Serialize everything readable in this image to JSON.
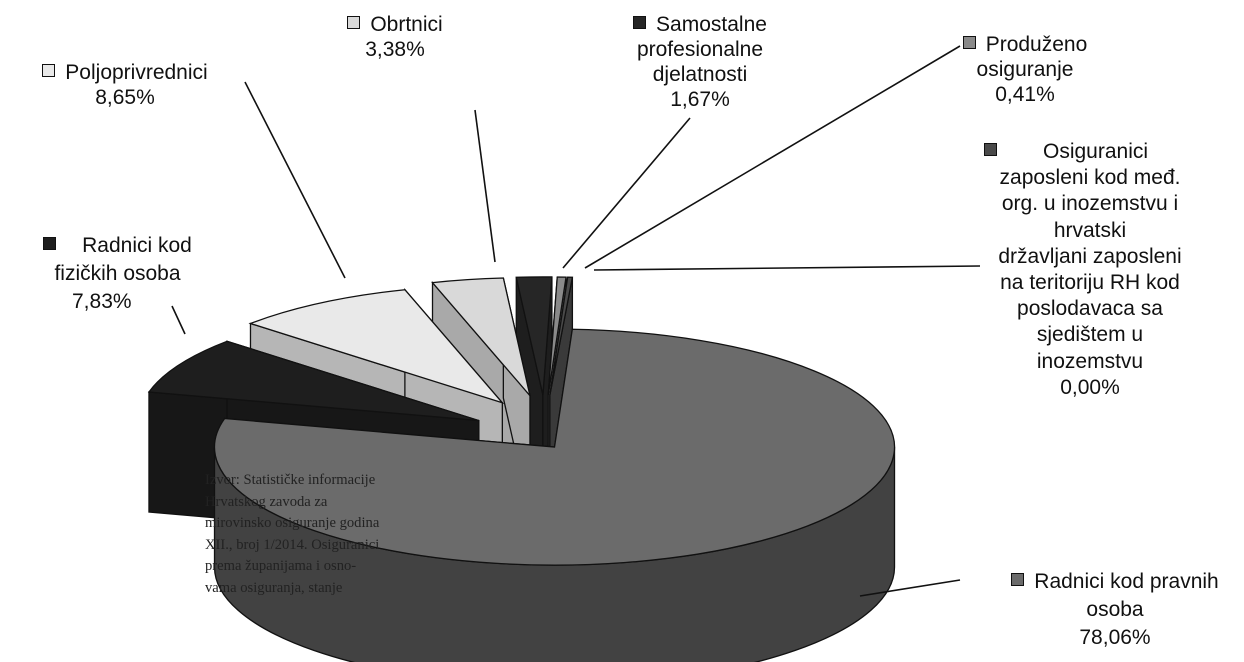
{
  "chart_data": {
    "type": "pie",
    "style": "3d-exploded",
    "slices": [
      {
        "label": "Radnici kod pravnih osoba",
        "value": 78.06,
        "value_label": "78,06%",
        "color": "#6b6b6b"
      },
      {
        "label": "Radnici kod fizičkih osoba",
        "value": 7.83,
        "value_label": "7,83%",
        "color": "#1e1e1e"
      },
      {
        "label": "Poljoprivrednici",
        "value": 8.65,
        "value_label": "8,65%",
        "color": "#e9e9e9"
      },
      {
        "label": "Obrtnici",
        "value": 3.38,
        "value_label": "3,38%",
        "color": "#d9d9d9"
      },
      {
        "label": "Samostalne profesionalne djelatnosti",
        "value": 1.67,
        "value_label": "1,67%",
        "color": "#262626"
      },
      {
        "label": "Produženo osiguranje",
        "value": 0.41,
        "value_label": "0,41%",
        "color": "#8a8a8a"
      },
      {
        "label": "Osiguranici zaposleni kod međ. org. u inozemstvu i hrvatski državljani zaposleni na teritoriju RH kod poslodavaca sa sjedištem u inozemstvu",
        "value": 0.0,
        "value_label": "0,00%",
        "color": "#4a4a4a"
      }
    ]
  },
  "labels": {
    "obrtnici": {
      "lines": [
        "Obrtnici",
        "3,38%"
      ]
    },
    "samostalne": {
      "lines": [
        "Samostalne",
        "profesionalne",
        "djelatnosti",
        "1,67%"
      ]
    },
    "produzeno": {
      "lines": [
        "Produženo",
        "osiguranje",
        "0,41%"
      ]
    },
    "poljoprivrednici": {
      "lines": [
        "Poljoprivrednici",
        "8,65%"
      ]
    },
    "osiguranici": {
      "lines": [
        "Osiguranici",
        "zaposleni kod međ.",
        "org. u inozemstvu i",
        "hrvatski",
        "državljani zaposleni",
        "na teritoriju RH kod",
        "poslodavaca sa",
        "sjedištem u",
        "inozemstvu",
        "0,00%"
      ]
    },
    "radnici_fizicke": {
      "lines": [
        "Radnici kod",
        "fizičkih osoba",
        "7,83%"
      ]
    },
    "radnici_pravne": {
      "lines": [
        "Radnici kod pravnih",
        "osoba",
        "78,06%"
      ]
    }
  },
  "source_note": "Izvor: Statističke informacije Hrvatskog zavoda za mirovinsko osiguranje godina XII., broj 1/2014. Osiguranici prema županijama i osno-vama osiguranja, stanje"
}
